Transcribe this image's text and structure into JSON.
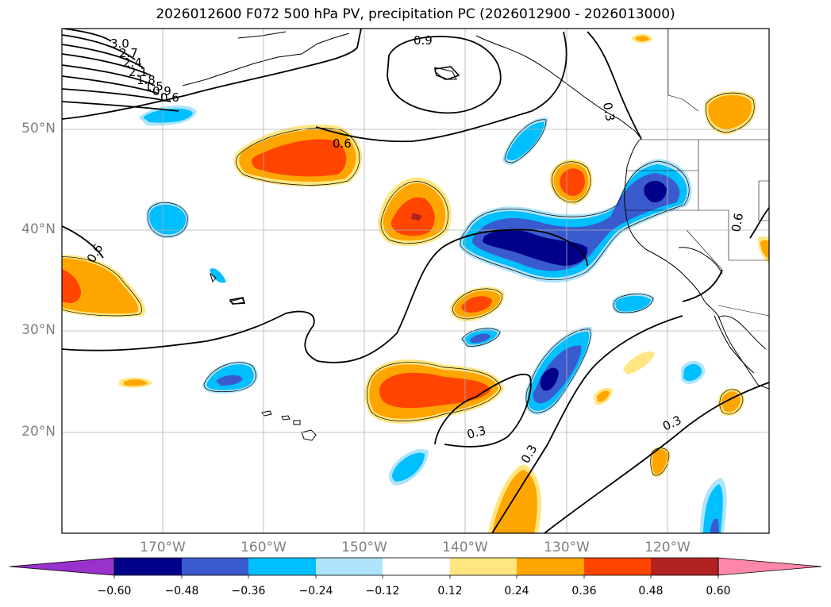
{
  "title": "2026012600 F072 500 hPa PV, precipitation PC (2026012900 - 2026013000)",
  "lat_labels": [
    "50°N",
    "40°N",
    "30°N",
    "20°N"
  ],
  "lon_labels": [
    "170°W",
    "160°W",
    "150°W",
    "140°W",
    "130°W",
    "120°W"
  ],
  "contour_labels": [
    "3.0",
    "2.7",
    "2.4",
    "2.1",
    "1.8",
    "1.5",
    "0.9",
    "0.6",
    "0.9",
    "0.6",
    "0.3",
    "0.6",
    "0.6",
    "0.3",
    "0.3",
    "0.3"
  ],
  "colorbar": {
    "ticks": [
      "−0.60",
      "−0.48",
      "−0.36",
      "−0.24",
      "−0.12",
      "0.12",
      "0.24",
      "0.36",
      "0.48",
      "0.60"
    ],
    "colors": [
      "#9932cc",
      "#00008b",
      "#3a5bcd",
      "#00bfff",
      "#aee4fb",
      "#ffffff",
      "#ffe680",
      "#ffa500",
      "#ff4500",
      "#b22222",
      "#ff88aa"
    ]
  },
  "colors": {
    "neg_1": "#aee4fb",
    "neg_2": "#00bfff",
    "neg_3": "#3a5bcd",
    "neg_4": "#00008b",
    "neg_5": "#9932cc",
    "pos_1": "#ffe680",
    "pos_2": "#ffa500",
    "pos_3": "#ff4500",
    "pos_4": "#b22222",
    "pos_5": "#ff88aa"
  }
}
